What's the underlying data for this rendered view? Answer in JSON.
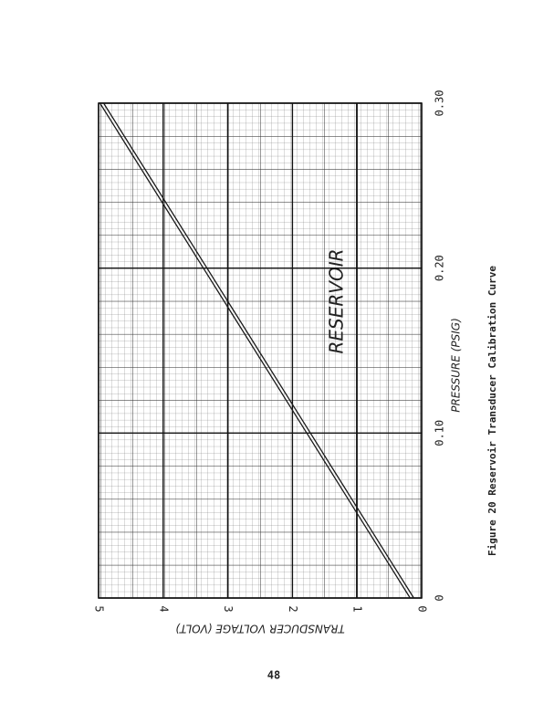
{
  "page_number": "48",
  "caption": "Figure 20   Reservoir Transducer Calibration Curve",
  "chart_data": {
    "type": "line",
    "xlabel": "PRESSURE  (PSIG)",
    "ylabel": "TRANSDUCER VOLTAGE  (VOLT)",
    "annotation": "RESERVOIR",
    "x": [
      0,
      0.1,
      0.2,
      0.3
    ],
    "series": [
      {
        "color": "#1a1a1a",
        "values": [
          0.15,
          1.75,
          3.35,
          4.95
        ]
      }
    ],
    "xlim": [
      0,
      0.3
    ],
    "ylim": [
      0,
      5
    ],
    "xticks": [
      0,
      {
        "value": 0.1,
        "label": "0.10"
      },
      {
        "value": 0.2,
        "label": "0.20"
      },
      {
        "value": 0.3,
        "label": "0.30"
      }
    ],
    "yticks": [
      0,
      1,
      2,
      3,
      4,
      5
    ],
    "grid": true
  }
}
